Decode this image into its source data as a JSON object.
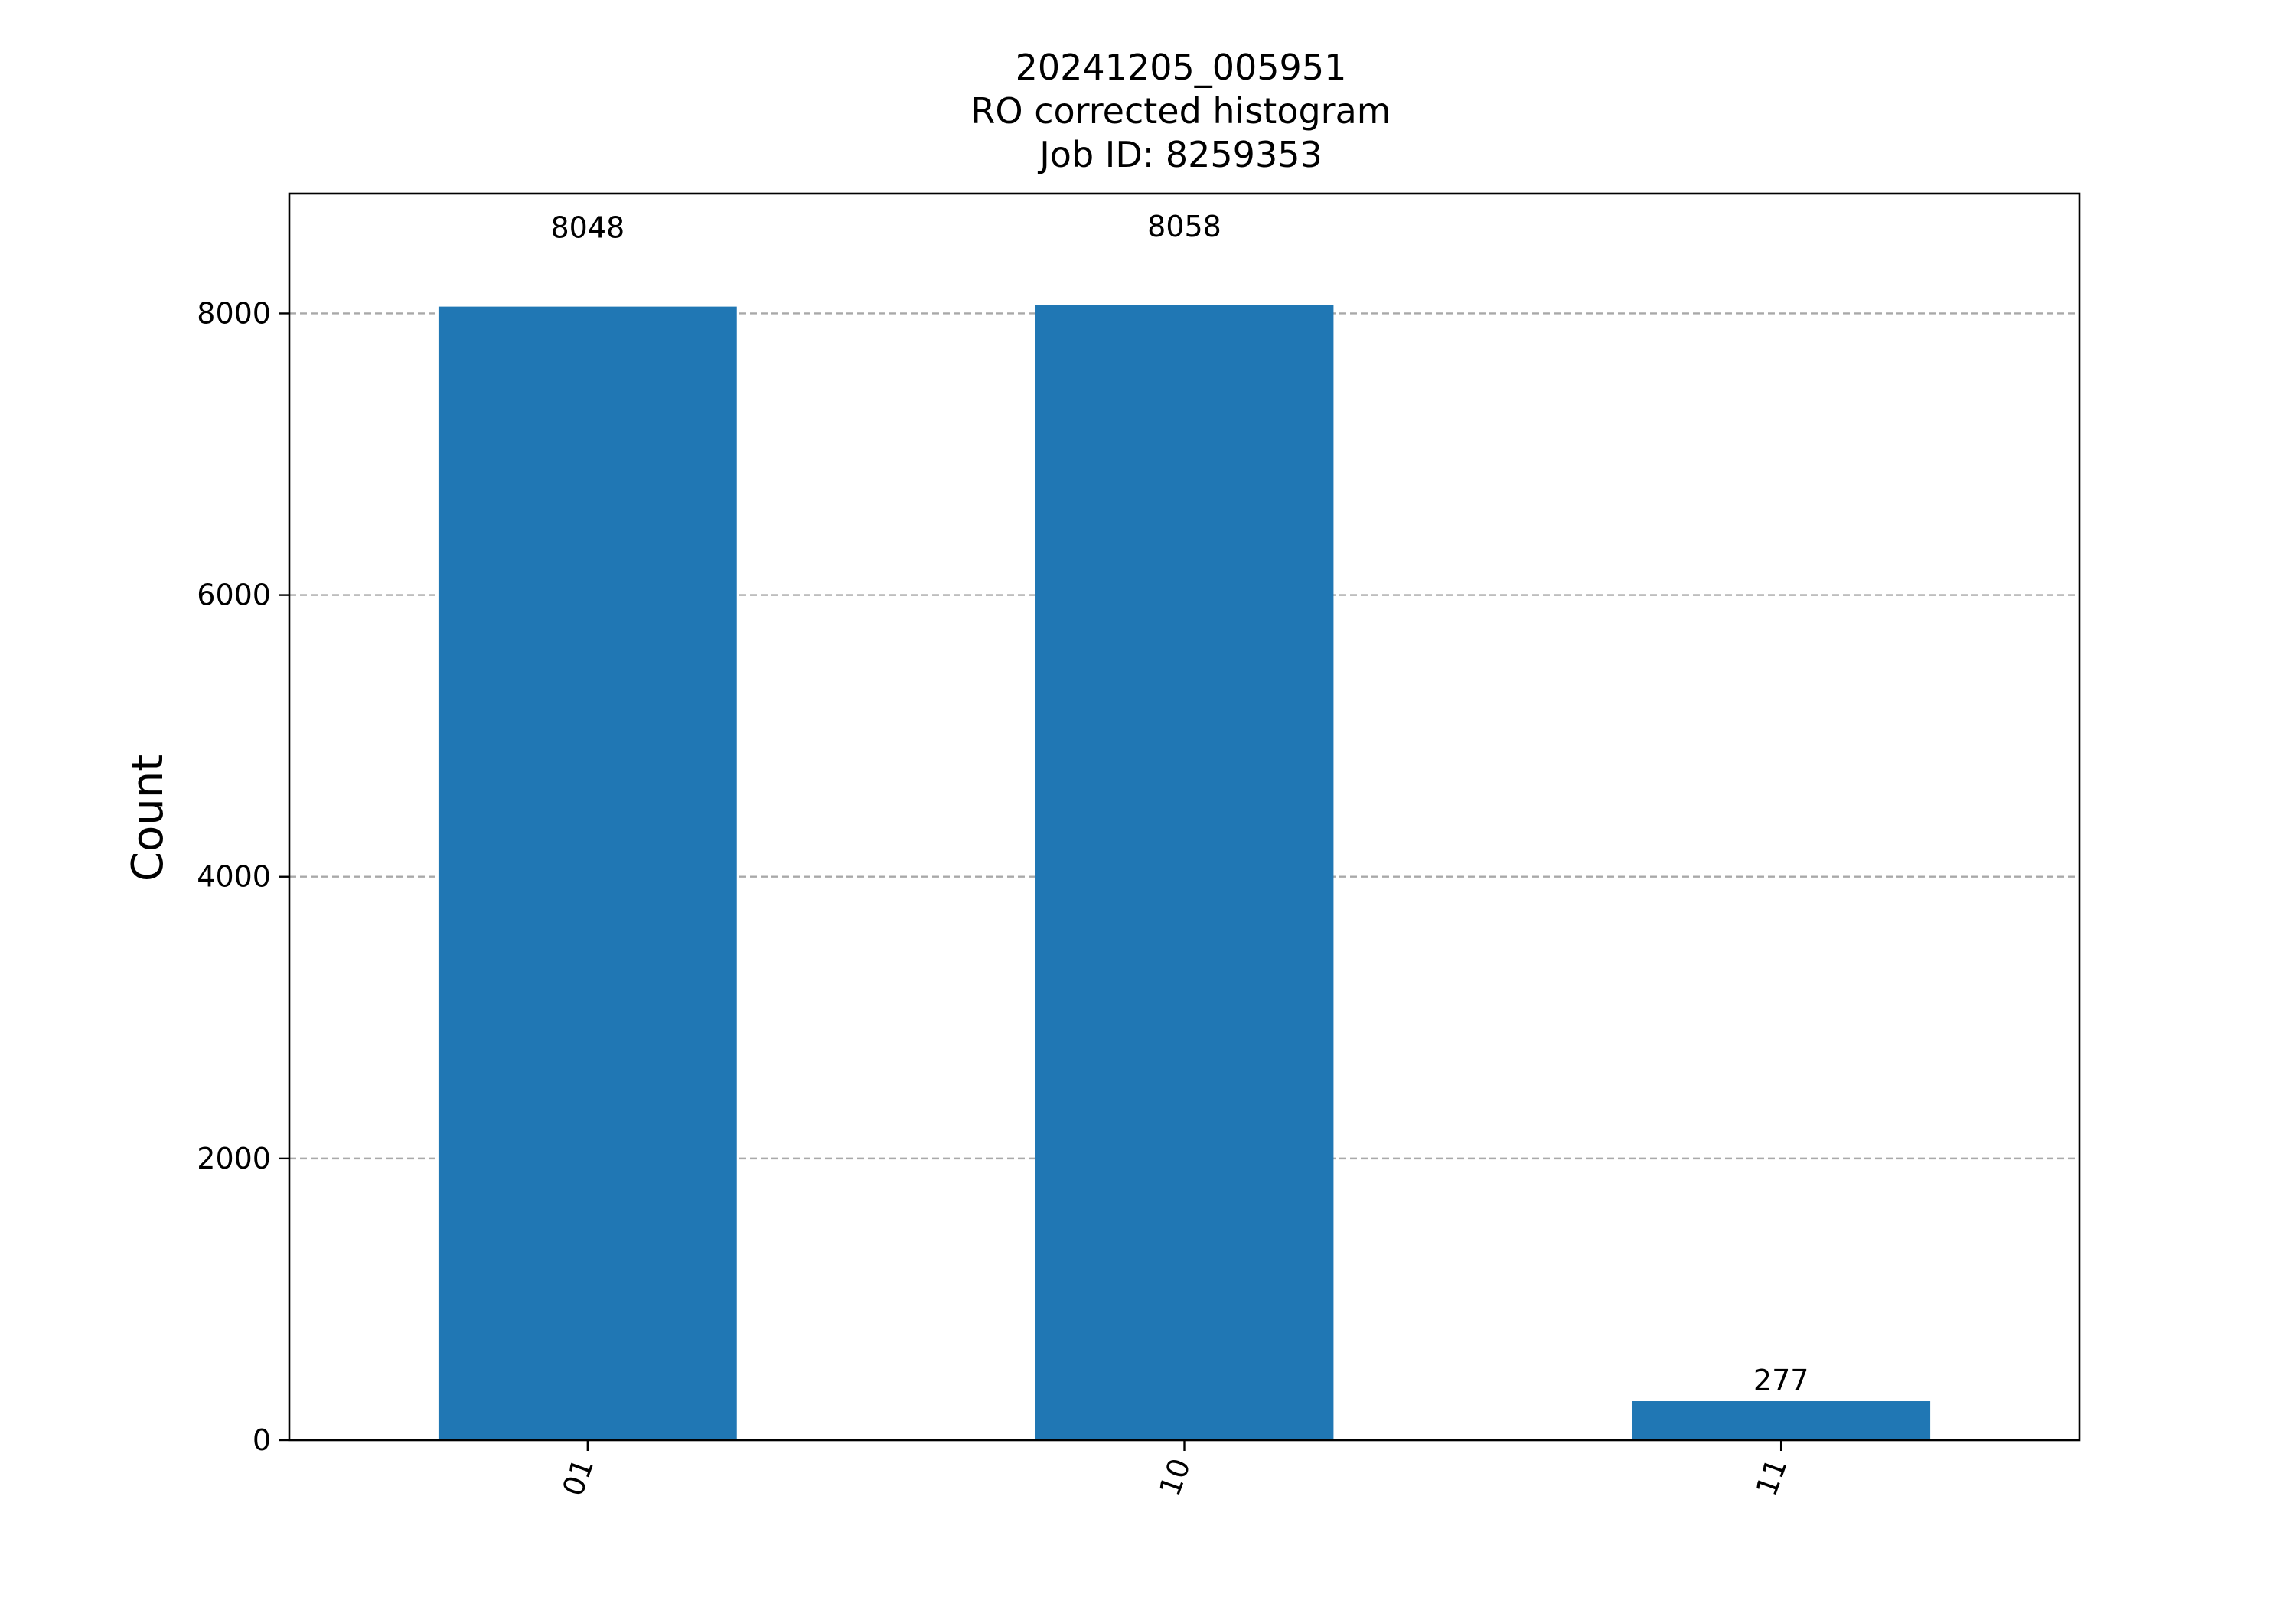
{
  "chart_data": {
    "type": "bar",
    "title_lines": [
      "20241205_005951",
      "RO corrected histogram",
      "Job ID: 8259353"
    ],
    "xlabel": "",
    "ylabel": "Count",
    "categories": [
      "01",
      "10",
      "11"
    ],
    "values": [
      8048,
      8058,
      277
    ],
    "bar_labels": [
      "8048",
      "8058",
      "277"
    ],
    "ylim": [
      0,
      8850
    ],
    "yticks": [
      0,
      2000,
      4000,
      6000,
      8000
    ],
    "ytick_labels": [
      "0",
      "2000",
      "4000",
      "6000",
      "8000"
    ],
    "x_tick_rotation_deg": 70,
    "grid": {
      "axis": "y",
      "style": "dashed",
      "color": "#a9a9a9"
    },
    "bar_color": "#2077b4",
    "legend": "none"
  }
}
